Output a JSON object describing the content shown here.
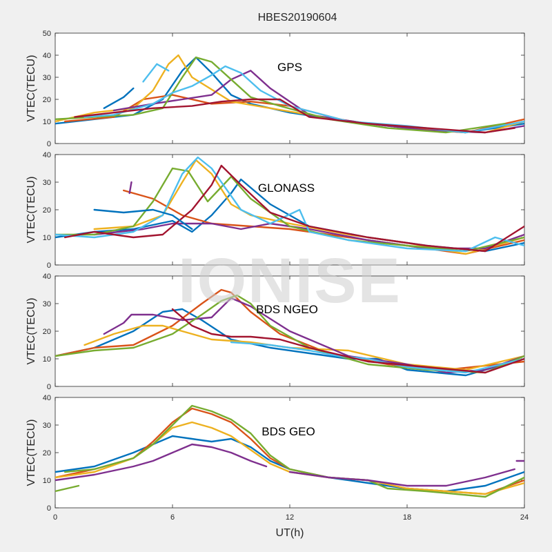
{
  "title": "HBES20190604",
  "watermark": "IONISE",
  "chart_data": [
    {
      "type": "line",
      "ylabel": "VTEC(TECU)",
      "xlabel": "",
      "annotation": "GPS",
      "xlim": [
        0,
        24
      ],
      "ylim": [
        0,
        50
      ],
      "yticks": [
        0,
        10,
        20,
        30,
        40,
        50
      ],
      "series": [
        {
          "color": "#0072BD",
          "x": [
            0,
            2,
            4,
            5.5,
            6.5,
            7.2,
            8,
            9,
            10,
            12,
            15,
            18,
            21,
            24
          ],
          "y": [
            9,
            11,
            13,
            20,
            33,
            39,
            32,
            22,
            18,
            14,
            10,
            7,
            5,
            9
          ]
        },
        {
          "color": "#D95319",
          "x": [
            0.5,
            3,
            4.5,
            6,
            8,
            10,
            12,
            15,
            18,
            21,
            24
          ],
          "y": [
            10,
            12,
            20,
            22,
            18,
            19,
            17,
            10,
            7,
            5,
            11
          ]
        },
        {
          "color": "#EDB120",
          "x": [
            0,
            2,
            4,
            5,
            5.8,
            6.3,
            7,
            9,
            11,
            13,
            16,
            19,
            22,
            24
          ],
          "y": [
            10,
            14,
            16,
            24,
            36,
            40,
            30,
            19,
            16,
            13,
            9,
            6,
            5,
            10
          ]
        },
        {
          "color": "#7E2F8E",
          "x": [
            3,
            5,
            6.5,
            8,
            9,
            10,
            11,
            13,
            16,
            19,
            22,
            24
          ],
          "y": [
            15,
            18,
            20,
            22,
            29,
            33,
            25,
            13,
            9,
            6,
            5,
            8
          ]
        },
        {
          "color": "#77AC30",
          "x": [
            0,
            2,
            4,
            5.5,
            6.5,
            7.2,
            8,
            9,
            10,
            11.5,
            14,
            17,
            20,
            23
          ],
          "y": [
            11,
            12,
            13,
            16,
            30,
            39,
            37,
            29,
            21,
            17,
            11,
            7,
            5,
            9
          ]
        },
        {
          "color": "#4DBEEE",
          "x": [
            1.5,
            3,
            5,
            6,
            7,
            8,
            8.7,
            9.5,
            10.5,
            12,
            15,
            18,
            21,
            24
          ],
          "y": [
            12,
            13,
            18,
            23,
            26,
            31,
            35,
            32,
            24,
            17,
            10,
            8,
            5,
            10
          ]
        },
        {
          "color": "#A2142F",
          "x": [
            1,
            3,
            5,
            7,
            8.5,
            10,
            11.5,
            13,
            16,
            19,
            22,
            23.5
          ],
          "y": [
            12,
            14,
            16,
            17,
            19,
            20,
            20,
            12,
            9,
            7,
            5,
            7
          ]
        },
        {
          "color": "#0072BD",
          "x": [
            2.5,
            3.5,
            4
          ],
          "y": [
            16,
            21,
            25
          ]
        },
        {
          "color": "#4DBEEE",
          "x": [
            4.5,
            5.2,
            5.8
          ],
          "y": [
            28,
            36,
            33
          ]
        }
      ]
    },
    {
      "type": "line",
      "ylabel": "VTEC(TECU)",
      "xlabel": "",
      "annotation": "GLONASS",
      "xlim": [
        0,
        24
      ],
      "ylim": [
        0,
        40
      ],
      "yticks": [
        0,
        10,
        20,
        30,
        40
      ],
      "series": [
        {
          "color": "#0072BD",
          "x": [
            0,
            2,
            4,
            6,
            7,
            8,
            9,
            9.5,
            11,
            13,
            16,
            19,
            22,
            24
          ],
          "y": [
            10,
            12,
            13,
            16,
            12,
            18,
            26,
            31,
            22,
            14,
            10,
            7,
            5,
            8
          ]
        },
        {
          "color": "#D95319",
          "x": [
            3.5,
            5,
            6.5,
            8,
            10,
            12,
            15,
            18,
            21,
            24
          ],
          "y": [
            27,
            24,
            18,
            15,
            14,
            13,
            10,
            7,
            4,
            9
          ]
        },
        {
          "color": "#EDB120",
          "x": [
            2,
            4,
            5.5,
            6.5,
            7.2,
            8,
            9,
            10,
            12,
            15,
            18,
            21,
            24
          ],
          "y": [
            13,
            14,
            18,
            30,
            38,
            33,
            22,
            18,
            15,
            11,
            8,
            4,
            10
          ]
        },
        {
          "color": "#7E2F8E",
          "x": [
            2,
            4.5,
            6,
            8,
            9.5,
            11,
            13,
            16,
            19,
            22,
            24
          ],
          "y": [
            11,
            13,
            15,
            15,
            13,
            15,
            13,
            9,
            6,
            6,
            11
          ]
        },
        {
          "color": "#77AC30",
          "x": [
            0,
            2,
            4,
            5,
            6,
            6.8,
            7.8,
            9,
            10,
            12,
            15,
            18,
            21,
            24
          ],
          "y": [
            11,
            11,
            14,
            23,
            35,
            34,
            23,
            32,
            24,
            14,
            9,
            7,
            5,
            10
          ]
        },
        {
          "color": "#4DBEEE",
          "x": [
            0,
            2,
            4,
            5.5,
            6.5,
            7.3,
            8,
            9.5,
            11,
            12.5,
            13,
            15,
            18,
            21,
            22.5,
            24
          ],
          "y": [
            11,
            10,
            12,
            18,
            33,
            39,
            35,
            20,
            15,
            20,
            12,
            9,
            6,
            5,
            10,
            7
          ]
        },
        {
          "color": "#A2142F",
          "x": [
            0.5,
            2,
            4,
            5.5,
            7,
            8,
            8.5,
            9.5,
            11,
            13,
            16,
            19,
            22,
            24
          ],
          "y": [
            10,
            12,
            10,
            11,
            20,
            29,
            36,
            29,
            19,
            14,
            10,
            7,
            5,
            14
          ]
        },
        {
          "color": "#0072BD",
          "x": [
            2,
            3.5,
            5,
            6,
            7
          ],
          "y": [
            20,
            19,
            20,
            18,
            13
          ]
        },
        {
          "color": "#7E2F8E",
          "x": [
            3.8,
            3.9
          ],
          "y": [
            26,
            30
          ]
        }
      ]
    },
    {
      "type": "line",
      "ylabel": "VTEC(TECU)",
      "xlabel": "",
      "annotation": "BDS NGEO",
      "xlim": [
        0,
        24
      ],
      "ylim": [
        0,
        40
      ],
      "yticks": [
        0,
        10,
        20,
        30,
        40
      ],
      "series": [
        {
          "color": "#0072BD",
          "x": [
            0,
            2,
            4,
            5.5,
            6.5,
            7.5,
            9,
            11,
            13,
            15,
            16.5,
            18,
            21,
            24
          ],
          "y": [
            11,
            14,
            20,
            27,
            28,
            24,
            17,
            14,
            12,
            10,
            10,
            6,
            4,
            10
          ]
        },
        {
          "color": "#D95319",
          "x": [
            0,
            2,
            4,
            6,
            7.5,
            8.5,
            9,
            10,
            11.5,
            14,
            17,
            20,
            24
          ],
          "y": [
            11,
            14,
            15,
            22,
            30,
            35,
            34,
            27,
            19,
            12,
            8,
            6,
            9
          ]
        },
        {
          "color": "#EDB120",
          "x": [
            1.5,
            3,
            4.5,
            5.5,
            6.5,
            8,
            10,
            12,
            15,
            18,
            21,
            24
          ],
          "y": [
            15,
            19,
            22,
            22,
            20,
            17,
            16,
            14,
            13,
            8,
            6,
            11
          ]
        },
        {
          "color": "#7E2F8E",
          "x": [
            2.5,
            3.5,
            3.9,
            5,
            6.5,
            8,
            9,
            10,
            12,
            15,
            18,
            20,
            22,
            24
          ],
          "y": [
            19,
            23,
            26,
            26,
            24,
            25,
            32,
            29,
            20,
            11,
            8,
            5,
            6,
            11
          ]
        },
        {
          "color": "#77AC30",
          "x": [
            0,
            2,
            4,
            6,
            7.5,
            8.5,
            9.3,
            10,
            11,
            13,
            16,
            19,
            22,
            24
          ],
          "y": [
            11,
            13,
            14,
            19,
            26,
            31,
            33,
            30,
            22,
            14,
            8,
            6,
            5,
            11
          ]
        },
        {
          "color": "#4DBEEE",
          "x": [
            9,
            11,
            13,
            14.5,
            16,
            18,
            21,
            24
          ],
          "y": [
            16,
            15,
            13,
            11,
            10,
            7,
            5,
            10
          ]
        },
        {
          "color": "#A2142F",
          "x": [
            6,
            7,
            8,
            9,
            10,
            11.5,
            13,
            16,
            19,
            22,
            24
          ],
          "y": [
            28,
            22,
            19,
            18,
            18,
            17,
            14,
            9,
            7,
            5,
            10
          ]
        }
      ]
    },
    {
      "type": "line",
      "ylabel": "VTEC(TECU)",
      "xlabel": "UT(h)",
      "annotation": "BDS GEO",
      "xlim": [
        0,
        24
      ],
      "ylim": [
        0,
        40
      ],
      "yticks": [
        0,
        10,
        20,
        30,
        40
      ],
      "xticks": [
        0,
        6,
        12,
        18,
        24
      ],
      "series": [
        {
          "color": "#0072BD",
          "x": [
            0,
            2,
            4,
            6,
            7,
            8,
            9,
            10,
            11,
            12,
            14,
            16,
            18,
            20,
            22,
            24
          ],
          "y": [
            13,
            15,
            20,
            26,
            25,
            24,
            25,
            22,
            17,
            14,
            11,
            9,
            7,
            6,
            8,
            13
          ]
        },
        {
          "color": "#D95319",
          "x": [
            0,
            2,
            4,
            5,
            6,
            7,
            8,
            9,
            10,
            11,
            12,
            14,
            16,
            18,
            20,
            22,
            24
          ],
          "y": [
            11,
            14,
            18,
            24,
            31,
            36,
            34,
            31,
            25,
            18,
            14,
            11,
            10,
            7,
            6,
            5,
            10
          ]
        },
        {
          "color": "#EDB120",
          "x": [
            0,
            2,
            4,
            5,
            6,
            7,
            8,
            9,
            10,
            11,
            12,
            14,
            16,
            18,
            20,
            22,
            24
          ],
          "y": [
            11,
            13,
            18,
            23,
            29,
            31,
            29,
            26,
            21,
            16,
            13,
            11,
            10,
            7,
            6,
            5,
            9
          ]
        },
        {
          "color": "#7E2F8E",
          "x": [
            0,
            2,
            4,
            5,
            6,
            7,
            8,
            9,
            10,
            10.8
          ],
          "y": [
            10,
            12,
            15,
            17,
            20,
            23,
            22,
            20,
            17,
            15
          ]
        },
        {
          "color": "#77AC30",
          "x": [
            0,
            1.2
          ],
          "y": [
            6,
            8
          ]
        },
        {
          "color": "#77AC30",
          "x": [
            0.5,
            2,
            4,
            5,
            6,
            7,
            8,
            9,
            10,
            11,
            12,
            14,
            16,
            17,
            19,
            22,
            24
          ],
          "y": [
            13,
            14,
            18,
            23,
            30,
            37,
            35,
            32,
            27,
            19,
            14,
            11,
            10,
            7,
            6,
            4,
            11
          ]
        },
        {
          "color": "#7E2F8E",
          "x": [
            12,
            14,
            16,
            18,
            20,
            22,
            23.5
          ],
          "y": [
            13,
            11,
            10,
            8,
            8,
            11,
            14
          ]
        },
        {
          "color": "#7E2F8E",
          "x": [
            23.6,
            24
          ],
          "y": [
            17,
            17
          ]
        }
      ]
    }
  ]
}
